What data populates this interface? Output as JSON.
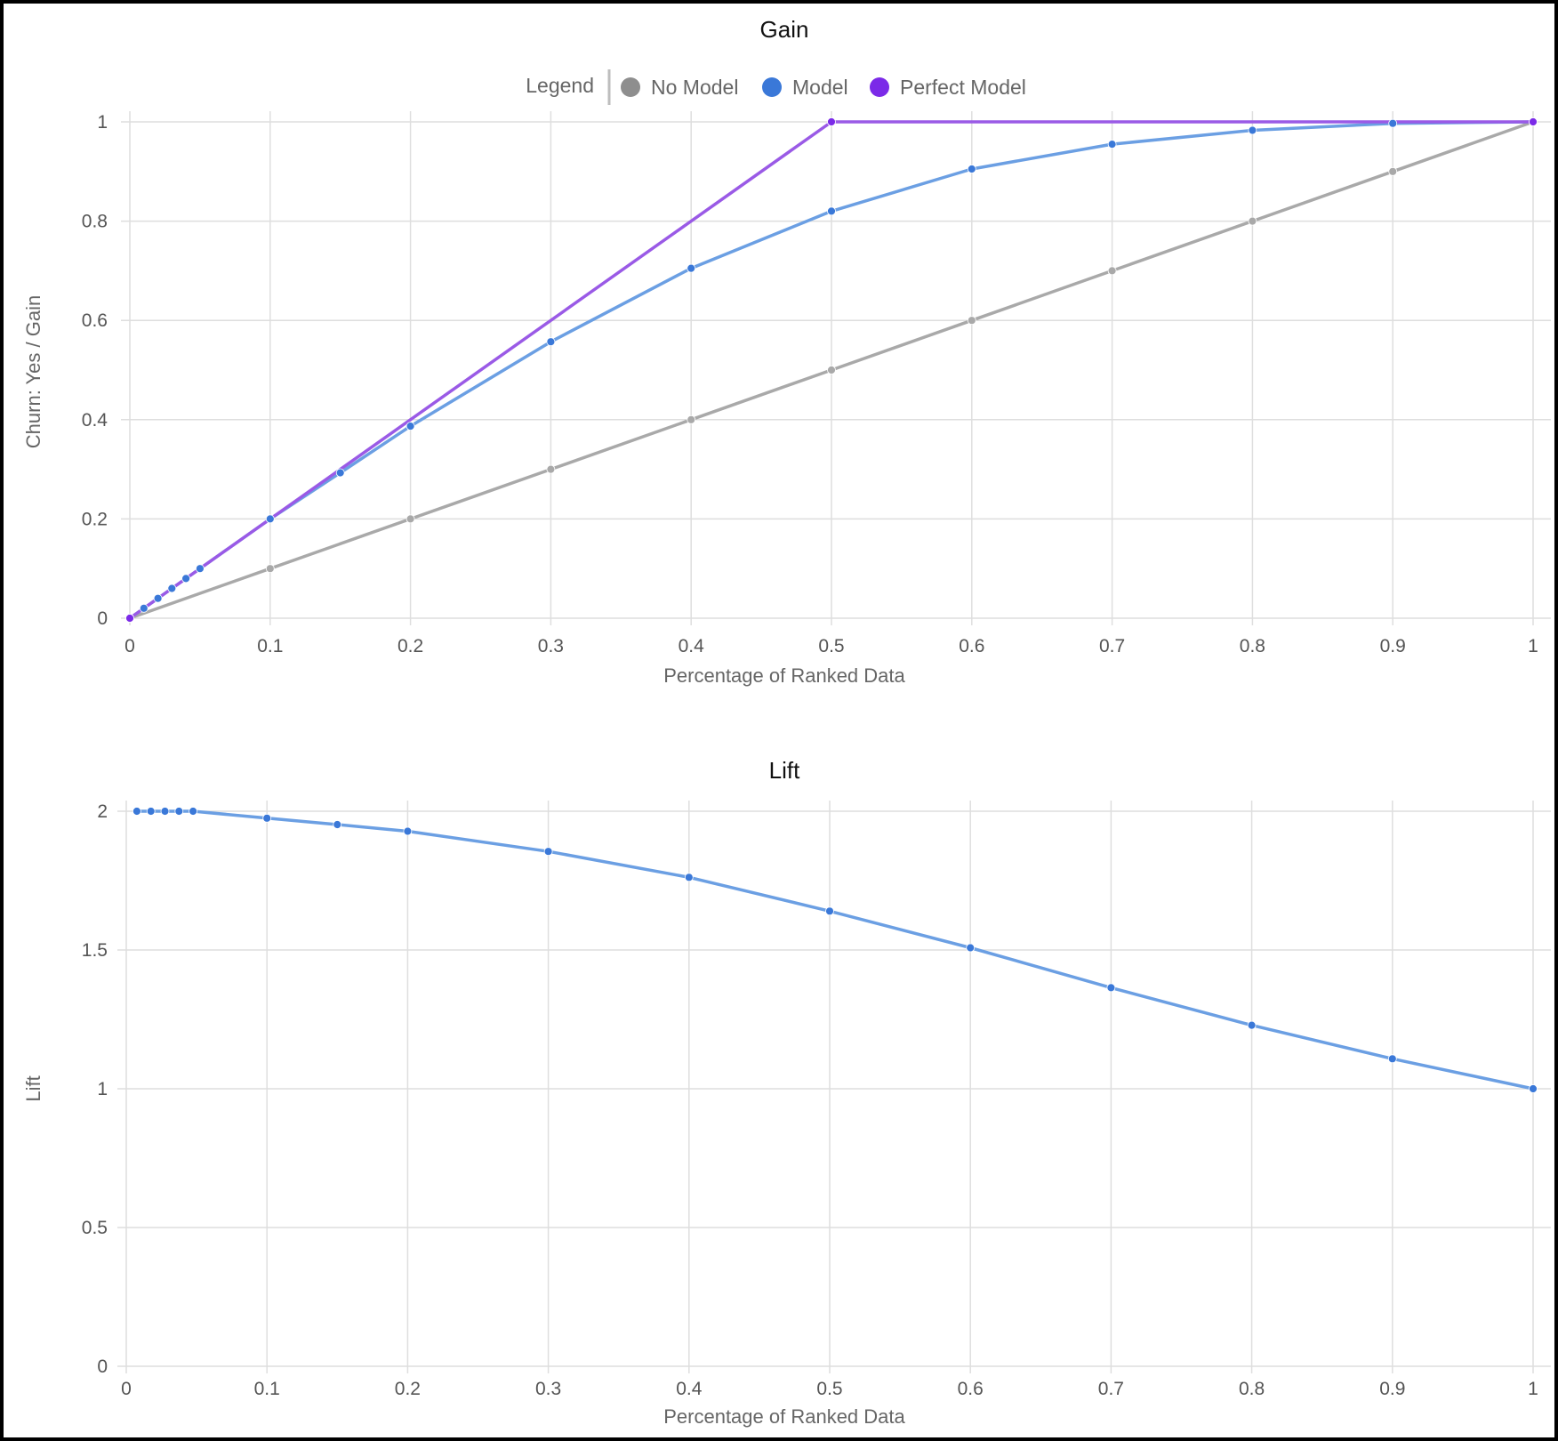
{
  "colors": {
    "no_model": "#a9a9a9",
    "model": "#3a78d8",
    "model_line": "#6b9fe3",
    "perfect": "#7b2ae8",
    "perfect_line": "#9a5ae6"
  },
  "chart_data": [
    {
      "type": "line",
      "title": "Gain",
      "xlabel": "Percentage of Ranked Data",
      "ylabel": "Churn: Yes / Gain",
      "xlim": [
        0,
        1
      ],
      "ylim": [
        0,
        1
      ],
      "x_ticks": [
        "0",
        "0.1",
        "0.2",
        "0.3",
        "0.4",
        "0.5",
        "0.6",
        "0.7",
        "0.8",
        "0.9",
        "1"
      ],
      "y_ticks": [
        "0",
        "0.2",
        "0.4",
        "0.6",
        "0.8",
        "1"
      ],
      "legend": {
        "title": "Legend",
        "placement": "top-center",
        "entries": [
          "No Model",
          "Model",
          "Perfect Model"
        ]
      },
      "grid": true,
      "series": [
        {
          "name": "No Model",
          "points": [
            [
              0,
              0
            ],
            [
              0.1,
              0.1
            ],
            [
              0.2,
              0.2
            ],
            [
              0.3,
              0.3
            ],
            [
              0.4,
              0.4
            ],
            [
              0.5,
              0.5
            ],
            [
              0.6,
              0.6
            ],
            [
              0.7,
              0.7
            ],
            [
              0.8,
              0.8
            ],
            [
              0.9,
              0.9
            ],
            [
              1,
              1
            ]
          ]
        },
        {
          "name": "Model",
          "points": [
            [
              0,
              0
            ],
            [
              0.01,
              0.02
            ],
            [
              0.02,
              0.04
            ],
            [
              0.03,
              0.06
            ],
            [
              0.04,
              0.08
            ],
            [
              0.05,
              0.1
            ],
            [
              0.1,
              0.2
            ],
            [
              0.15,
              0.293
            ],
            [
              0.2,
              0.387
            ],
            [
              0.3,
              0.557
            ],
            [
              0.4,
              0.705
            ],
            [
              0.5,
              0.82
            ],
            [
              0.6,
              0.905
            ],
            [
              0.7,
              0.955
            ],
            [
              0.8,
              0.983
            ],
            [
              0.9,
              0.997
            ],
            [
              1,
              1
            ]
          ]
        },
        {
          "name": "Perfect Model",
          "points": [
            [
              0,
              0
            ],
            [
              0.5,
              1
            ],
            [
              1,
              1
            ]
          ]
        }
      ]
    },
    {
      "type": "line",
      "title": "Lift",
      "xlabel": "Percentage of Ranked Data",
      "ylabel": "Lift",
      "xlim": [
        0,
        1
      ],
      "ylim": [
        0,
        2
      ],
      "x_ticks": [
        "0",
        "0.1",
        "0.2",
        "0.3",
        "0.4",
        "0.5",
        "0.6",
        "0.7",
        "0.8",
        "0.9",
        "1"
      ],
      "y_ticks": [
        "0",
        "0.5",
        "1",
        "1.5",
        "2"
      ],
      "grid": true,
      "series": [
        {
          "name": "Model",
          "points": [
            [
              0.0075,
              2
            ],
            [
              0.0175,
              2
            ],
            [
              0.0275,
              2
            ],
            [
              0.0375,
              2
            ],
            [
              0.0475,
              2
            ],
            [
              0.1,
              1.975
            ],
            [
              0.15,
              1.952
            ],
            [
              0.2,
              1.928
            ],
            [
              0.3,
              1.855
            ],
            [
              0.4,
              1.762
            ],
            [
              0.5,
              1.64
            ],
            [
              0.6,
              1.508
            ],
            [
              0.7,
              1.364
            ],
            [
              0.8,
              1.229
            ],
            [
              0.9,
              1.108
            ],
            [
              1,
              1
            ]
          ]
        }
      ]
    }
  ]
}
